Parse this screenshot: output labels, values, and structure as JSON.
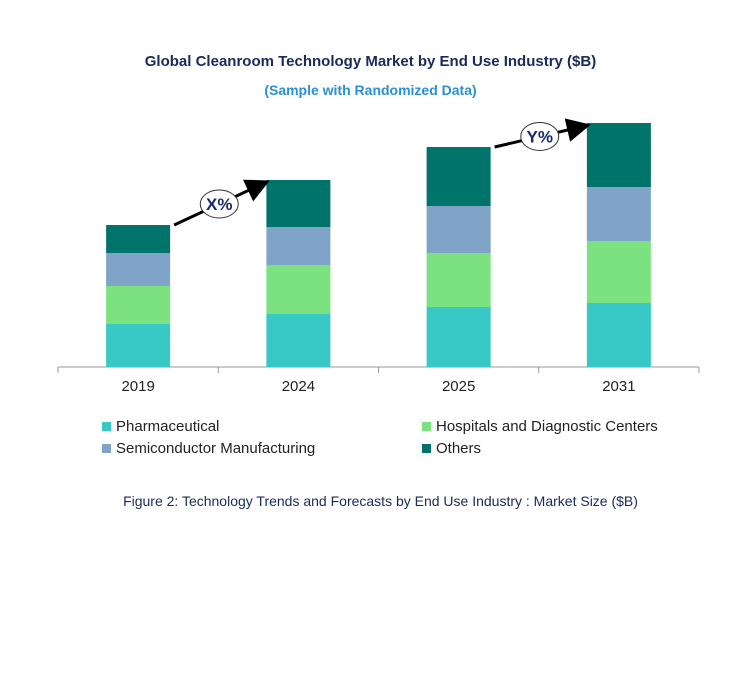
{
  "chart_data": {
    "type": "bar",
    "stacked": true,
    "title": "Global Cleanroom Technology Market by End Use Industry ($B)",
    "subtitle": "(Sample with Randomized Data)",
    "categories": [
      "2019",
      "2024",
      "2025",
      "2031"
    ],
    "series": [
      {
        "name": "Pharmaceutical",
        "color": "#38c8c6",
        "values": [
          43,
          53,
          60,
          64
        ]
      },
      {
        "name": "Hospitals and Diagnostic Centers",
        "color": "#7be27f",
        "values": [
          38,
          49,
          54,
          62
        ]
      },
      {
        "name": "Semiconductor Manufacturing",
        "color": "#7fa4c8",
        "values": [
          33,
          38,
          47,
          54
        ]
      },
      {
        "name": "Others",
        "color": "#00736b",
        "values": [
          28,
          47,
          59,
          64
        ]
      }
    ],
    "annotations": [
      {
        "text": "X%",
        "from": "2019",
        "to": "2024"
      },
      {
        "text": "Y%",
        "from": "2025",
        "to": "2031"
      }
    ],
    "y_axis_shown": false,
    "grid": false,
    "legend_placement": "bottom",
    "caption": "Figure 2: Technology  Trends  and Forecasts by End Use Industry  : Market Size ($B)"
  }
}
